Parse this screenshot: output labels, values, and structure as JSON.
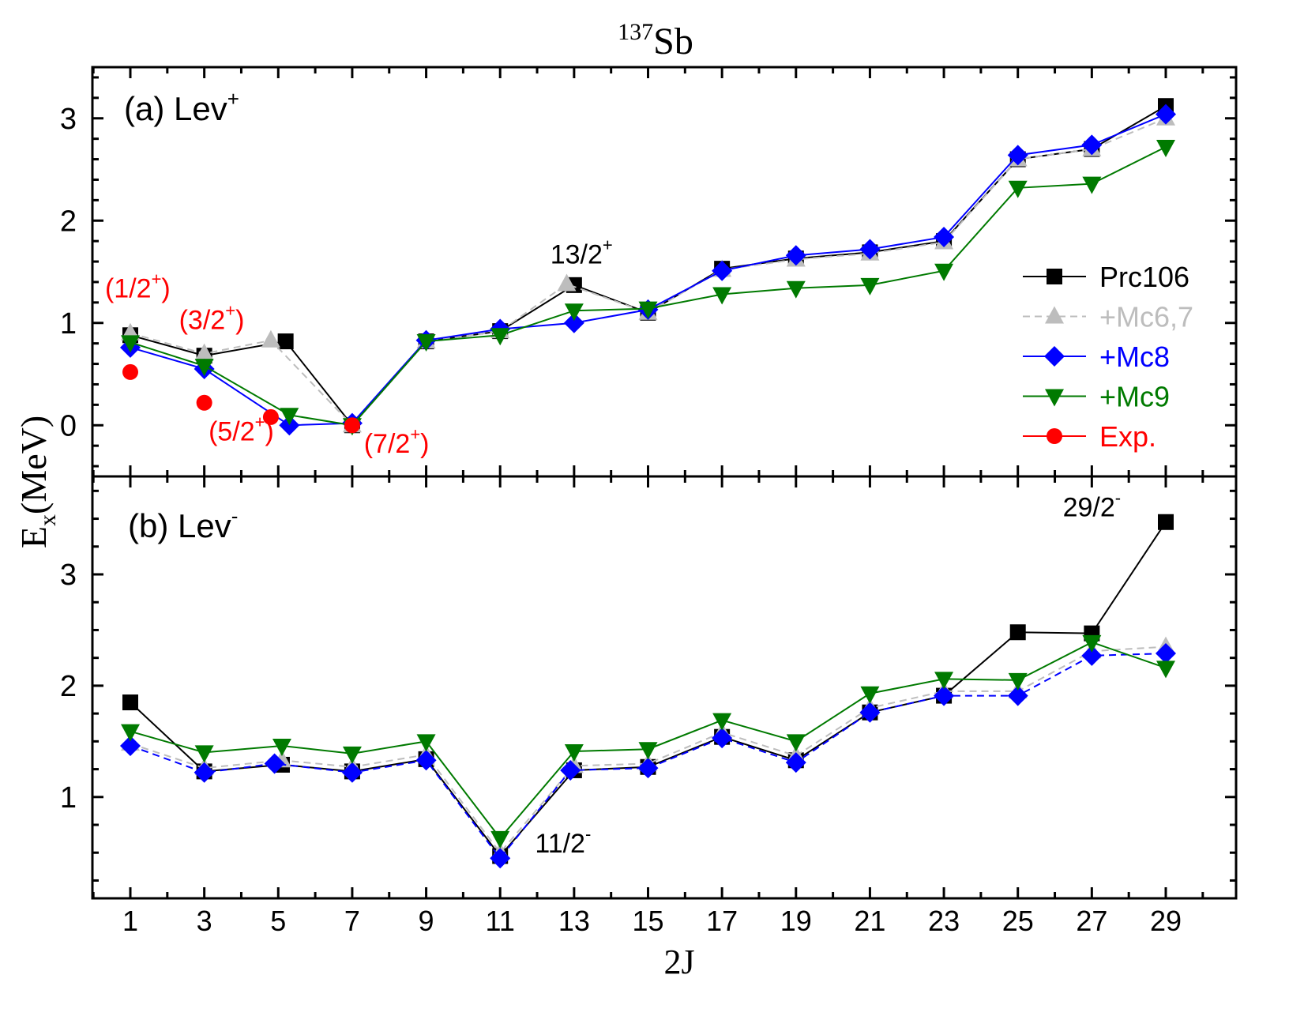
{
  "chart_data": [
    {
      "type": "line",
      "panel": "(a)",
      "panel_label": {
        "text": "(a) Lev",
        "sup": "+"
      },
      "title": {
        "sup": "137",
        "text": "Sb"
      },
      "xlabel": "2J",
      "ylabel": {
        "text": "E",
        "sub": "x",
        "unit": "(MeV)"
      },
      "x_ticks": [
        "1",
        "3",
        "5",
        "7",
        "9",
        "11",
        "13",
        "15",
        "17",
        "19",
        "21",
        "23",
        "25",
        "27",
        "29"
      ],
      "xlim": [
        -0.1,
        31
      ],
      "ylim": [
        -0.5,
        3.5
      ],
      "y_ticks": [
        "0",
        "1",
        "2",
        "3"
      ],
      "legend_position": "right",
      "series": [
        {
          "name": "Prc106",
          "color": "#000000",
          "marker": "square",
          "dash": false,
          "x": [
            1,
            3,
            5.2,
            7,
            9,
            11,
            13,
            15,
            17,
            19,
            21,
            23,
            25,
            27,
            29
          ],
          "y": [
            0.88,
            0.68,
            0.82,
            0.0,
            0.82,
            0.92,
            1.37,
            1.1,
            1.53,
            1.63,
            1.69,
            1.8,
            2.6,
            2.7,
            3.12
          ]
        },
        {
          "name": "+Mc6,7",
          "color": "#bdbdbd",
          "marker": "triangle",
          "dash": true,
          "x": [
            1,
            3,
            4.8,
            7,
            9,
            11,
            12.8,
            15,
            17,
            19,
            21,
            23,
            25,
            27,
            29
          ],
          "y": [
            0.9,
            0.7,
            0.83,
            0.0,
            0.82,
            0.92,
            1.38,
            1.1,
            1.52,
            1.62,
            1.68,
            1.79,
            2.6,
            2.7,
            3.0
          ]
        },
        {
          "name": "+Mc8",
          "color": "#0000ff",
          "marker": "diamond",
          "dash": false,
          "x": [
            1,
            3,
            5.3,
            7,
            9,
            11,
            13,
            15,
            17,
            19,
            21,
            23,
            25,
            27,
            29
          ],
          "y": [
            0.76,
            0.55,
            0.0,
            0.02,
            0.83,
            0.94,
            1.0,
            1.13,
            1.51,
            1.66,
            1.72,
            1.84,
            2.64,
            2.74,
            3.04
          ]
        },
        {
          "name": "+Mc9",
          "color": "#007a00",
          "marker": "triangle-down",
          "dash": false,
          "x": [
            1,
            3,
            5.3,
            7,
            9,
            11,
            13,
            15,
            17,
            19,
            21,
            23,
            25,
            27,
            29
          ],
          "y": [
            0.81,
            0.58,
            0.1,
            0.0,
            0.82,
            0.88,
            1.12,
            1.14,
            1.28,
            1.34,
            1.37,
            1.51,
            2.32,
            2.36,
            2.72
          ]
        },
        {
          "name": "Exp.",
          "color": "#ff0000",
          "marker": "circle",
          "dash": false,
          "noline": true,
          "x": [
            1,
            3,
            4.8,
            7
          ],
          "y": [
            0.52,
            0.22,
            0.08,
            0.0
          ]
        }
      ],
      "annotations": [
        {
          "text": "(1/2",
          "sup": "+",
          "close": ")",
          "color": "#ff0000",
          "x": 1.2,
          "y": 1.25
        },
        {
          "text": "(3/2",
          "sup": "+",
          "close": ")",
          "color": "#ff0000",
          "x": 3.2,
          "y": 0.94
        },
        {
          "text": "(5/2",
          "sup": "+",
          "close": ")",
          "color": "#ff0000",
          "x": 4.0,
          "y": -0.15
        },
        {
          "text": "(7/2",
          "sup": "+",
          "close": ")",
          "color": "#ff0000",
          "x": 8.2,
          "y": -0.27
        },
        {
          "text": "13/2",
          "sup": "+",
          "close": "",
          "color": "#000000",
          "x": 13.2,
          "y": 1.58
        }
      ]
    },
    {
      "type": "line",
      "panel": "(b)",
      "panel_label": {
        "text": "(b) Lev",
        "sup": "-"
      },
      "xlim": [
        -0.1,
        31
      ],
      "ylim": [
        0.09,
        3.88
      ],
      "y_ticks": [
        "1",
        "2",
        "3"
      ],
      "series": [
        {
          "name": "Prc106",
          "color": "#000000",
          "marker": "square",
          "dash": false,
          "x": [
            1,
            3,
            5.1,
            7,
            9,
            11,
            13,
            15,
            17,
            19,
            21,
            23,
            25,
            27,
            29
          ],
          "y": [
            1.85,
            1.23,
            1.29,
            1.23,
            1.34,
            0.47,
            1.24,
            1.27,
            1.54,
            1.33,
            1.76,
            1.91,
            2.48,
            2.47,
            3.47
          ]
        },
        {
          "name": "+Mc6,7",
          "color": "#bdbdbd",
          "marker": "triangle",
          "dash": true,
          "x": [
            1,
            3,
            5.1,
            7,
            9,
            11,
            13,
            15,
            17,
            19,
            21,
            23,
            25,
            27,
            29
          ],
          "y": [
            1.48,
            1.26,
            1.33,
            1.27,
            1.38,
            0.5,
            1.28,
            1.3,
            1.58,
            1.37,
            1.8,
            1.95,
            1.95,
            2.31,
            2.35
          ]
        },
        {
          "name": "+Mc8",
          "color": "#0000ff",
          "marker": "diamond",
          "dash": true,
          "x": [
            1,
            3,
            4.9,
            7,
            9,
            11,
            12.9,
            15,
            17,
            19,
            21,
            23,
            25,
            27,
            29
          ],
          "y": [
            1.46,
            1.22,
            1.3,
            1.22,
            1.33,
            0.45,
            1.24,
            1.26,
            1.53,
            1.31,
            1.76,
            1.91,
            1.91,
            2.27,
            2.29
          ]
        },
        {
          "name": "+Mc9",
          "color": "#007a00",
          "marker": "triangle-down",
          "dash": false,
          "x": [
            1,
            3,
            5.1,
            7,
            9,
            11,
            13,
            15,
            17,
            19,
            21,
            23,
            25,
            27,
            29
          ],
          "y": [
            1.59,
            1.4,
            1.46,
            1.39,
            1.5,
            0.63,
            1.41,
            1.43,
            1.69,
            1.5,
            1.93,
            2.06,
            2.05,
            2.39,
            2.16
          ]
        }
      ],
      "annotations": [
        {
          "text": "29/2",
          "sup": "-",
          "close": "",
          "color": "#000000",
          "x": 27.0,
          "y": 3.52
        },
        {
          "text": "11/2",
          "sup": "-",
          "close": "",
          "color": "#000000",
          "x": 12.7,
          "y": 0.5
        }
      ]
    }
  ]
}
